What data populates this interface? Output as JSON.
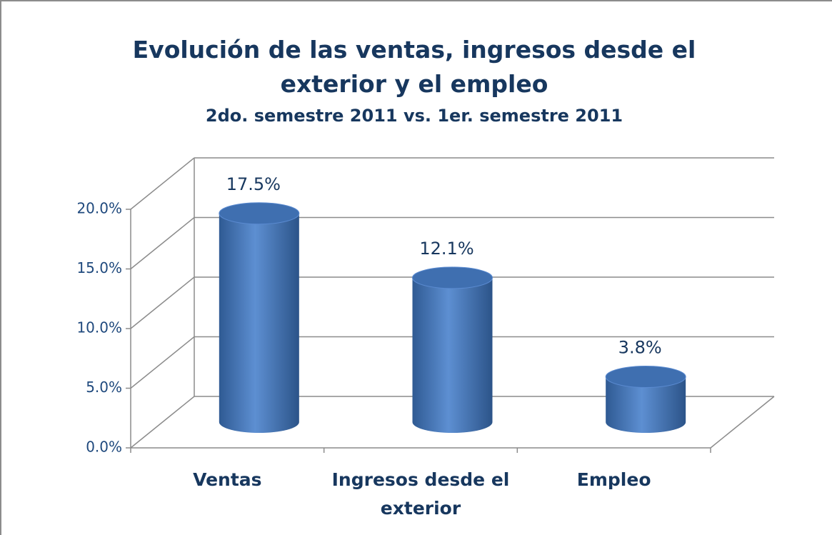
{
  "chart_data": {
    "type": "bar3d",
    "title": "Evolución de las ventas, ingresos desde el exterior y el empleo",
    "subtitle": "2do. semestre 2011 vs. 1er. semestre 2011",
    "categories": [
      "Ventas",
      "Ingresos desde el exterior",
      "Empleo"
    ],
    "values": [
      17.5,
      12.1,
      3.8
    ],
    "value_labels": [
      "17.5%",
      "12.1%",
      "3.8%"
    ],
    "color": "#4f81bd",
    "ylim": [
      0,
      20
    ],
    "yticks": [
      {
        "value": 0,
        "label": "0.0%"
      },
      {
        "value": 5,
        "label": "5.0%"
      },
      {
        "value": 10,
        "label": "10.0%"
      },
      {
        "value": 15,
        "label": "15.0%"
      },
      {
        "value": 20,
        "label": "20.0%"
      }
    ],
    "grid": true
  }
}
